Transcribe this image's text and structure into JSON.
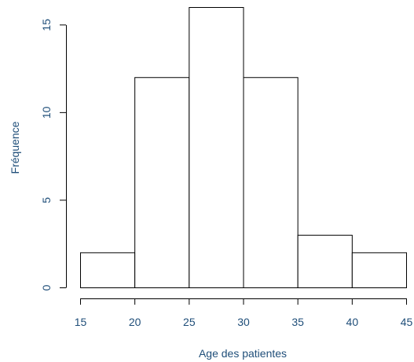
{
  "chart_data": {
    "type": "bar",
    "subtype": "histogram",
    "title": "",
    "xlabel": "Age des patientes",
    "ylabel": "Fréquence",
    "bins": [
      {
        "from": 15,
        "to": 20,
        "count": 2
      },
      {
        "from": 20,
        "to": 25,
        "count": 12
      },
      {
        "from": 25,
        "to": 30,
        "count": 16
      },
      {
        "from": 30,
        "to": 35,
        "count": 12
      },
      {
        "from": 35,
        "to": 40,
        "count": 3
      },
      {
        "from": 40,
        "to": 45,
        "count": 2
      }
    ],
    "xlim": [
      15,
      45
    ],
    "ylim": [
      0,
      16
    ],
    "xticks": [
      "15",
      "20",
      "25",
      "30",
      "35",
      "40",
      "45"
    ],
    "yticks": [
      "0",
      "5",
      "10",
      "15"
    ],
    "grid": false,
    "colors": {
      "bar_fill": "#ffffff",
      "bar_stroke": "#000000",
      "axis_label": "#1f4e79"
    }
  }
}
